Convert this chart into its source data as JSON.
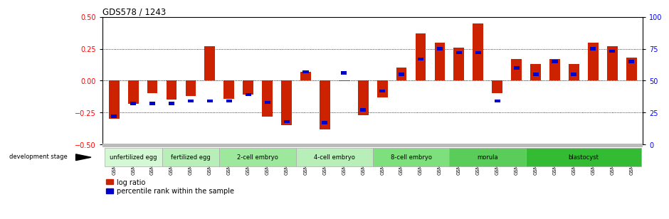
{
  "title": "GDS578 / 1243",
  "samples": [
    "GSM14658",
    "GSM14660",
    "GSM14661",
    "GSM14662",
    "GSM14663",
    "GSM14664",
    "GSM14665",
    "GSM14666",
    "GSM14667",
    "GSM14668",
    "GSM14677",
    "GSM14678",
    "GSM14679",
    "GSM14680",
    "GSM14681",
    "GSM14682",
    "GSM14683",
    "GSM14684",
    "GSM14685",
    "GSM14686",
    "GSM14687",
    "GSM14688",
    "GSM14689",
    "GSM14690",
    "GSM14691",
    "GSM14692",
    "GSM14693",
    "GSM14694"
  ],
  "log_ratios": [
    -0.3,
    -0.18,
    -0.1,
    -0.15,
    -0.12,
    0.27,
    -0.14,
    -0.11,
    -0.28,
    -0.35,
    0.07,
    -0.38,
    -0.005,
    -0.27,
    -0.13,
    0.1,
    0.37,
    0.3,
    0.26,
    0.45,
    -0.1,
    0.17,
    0.13,
    0.17,
    0.13,
    0.3,
    0.27,
    0.18
  ],
  "percentile_ranks": [
    22,
    32,
    32,
    32,
    34,
    34,
    34,
    39,
    33,
    18,
    57,
    17,
    56,
    27,
    42,
    55,
    67,
    75,
    72,
    72,
    34,
    60,
    55,
    65,
    55,
    75,
    73,
    65
  ],
  "stages": [
    {
      "label": "unfertilized egg",
      "start": 0,
      "end": 3,
      "color": "#d4f7d4"
    },
    {
      "label": "fertilized egg",
      "start": 3,
      "end": 6,
      "color": "#b8efb8"
    },
    {
      "label": "2-cell embryo",
      "start": 6,
      "end": 10,
      "color": "#9de89d"
    },
    {
      "label": "4-cell embryo",
      "start": 10,
      "end": 14,
      "color": "#b8efb8"
    },
    {
      "label": "8-cell embryo",
      "start": 14,
      "end": 18,
      "color": "#7de07d"
    },
    {
      "label": "morula",
      "start": 18,
      "end": 22,
      "color": "#5acc5a"
    },
    {
      "label": "blastocyst",
      "start": 22,
      "end": 28,
      "color": "#33bb33"
    }
  ],
  "bar_color_red": "#cc2200",
  "bar_color_blue": "#0000cc",
  "ylim": [
    -0.5,
    0.5
  ],
  "y2lim": [
    0,
    100
  ],
  "yticks_left": [
    -0.5,
    -0.25,
    0.0,
    0.25,
    0.5
  ],
  "yticks_right": [
    0,
    25,
    50,
    75,
    100
  ],
  "hlines_dotted": [
    0.25,
    0.0,
    -0.25
  ],
  "hline_red": 0.0
}
